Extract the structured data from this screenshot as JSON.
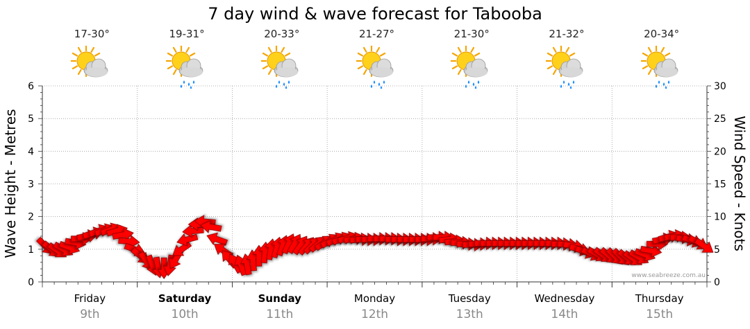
{
  "header": {
    "title": "7 day wind & wave forecast for Tabooba"
  },
  "days": [
    {
      "name": "Friday",
      "date": "9th",
      "bold": false,
      "temp": "17-30°",
      "icon": "sun-cloud-icon"
    },
    {
      "name": "Saturday",
      "date": "10th",
      "bold": true,
      "temp": "19-31°",
      "icon": "sun-cloud-rain-icon"
    },
    {
      "name": "Sunday",
      "date": "11th",
      "bold": true,
      "temp": "20-33°",
      "icon": "sun-cloud-rain-icon"
    },
    {
      "name": "Monday",
      "date": "12th",
      "bold": false,
      "temp": "21-27°",
      "icon": "sun-cloud-rain-icon"
    },
    {
      "name": "Tuesday",
      "date": "13th",
      "bold": false,
      "temp": "21-30°",
      "icon": "sun-cloud-rain-icon"
    },
    {
      "name": "Wednesday",
      "date": "14th",
      "bold": false,
      "temp": "21-32°",
      "icon": "sun-cloud-rain-icon"
    },
    {
      "name": "Thursday",
      "date": "15th",
      "bold": false,
      "temp": "20-34°",
      "icon": "sun-cloud-rain-icon"
    }
  ],
  "watermark": "www.seabreeze.com.au",
  "colors": {
    "arrow": "#ff0000",
    "arrow_stroke": "#8b0000",
    "grid": "#999999",
    "axis": "#333333",
    "date": "#888888"
  },
  "chart_data": {
    "type": "line",
    "title": "7 day wind & wave forecast for Tabooba",
    "ylabel_left": "Wave Height - Metres",
    "ylabel_right": "Wind Speed - Knots",
    "ylim_left": [
      0,
      6
    ],
    "ylim_right": [
      0,
      30
    ],
    "yticks_left": [
      "0",
      "1",
      "2",
      "3",
      "4",
      "5",
      "6"
    ],
    "yticks_right": [
      "0",
      "5",
      "10",
      "15",
      "20",
      "25",
      "30"
    ],
    "grid": true,
    "categories": [
      "Friday 9th",
      "Saturday 10th",
      "Sunday 11th",
      "Monday 12th",
      "Tuesday 13th",
      "Wednesday 14th",
      "Thursday 15th"
    ],
    "series": [
      {
        "values_knots": [
          5.5,
          5.0,
          4.8,
          5.0,
          5.3,
          6.0,
          6.6,
          7.0,
          7.4,
          7.8,
          7.9,
          8.0,
          7.8,
          7.2,
          6.2,
          5.0,
          4.0,
          3.2,
          2.6,
          2.3,
          2.2,
          2.6,
          3.5,
          5.0,
          6.5,
          7.8,
          8.8,
          9.2,
          8.4,
          6.5,
          4.8,
          3.5,
          2.8,
          2.5,
          2.6,
          3.2,
          3.9,
          4.4,
          4.9,
          5.2,
          5.5,
          5.8,
          5.8,
          5.6,
          5.5,
          5.6,
          5.8,
          6.0,
          6.3,
          6.5,
          6.6,
          6.7,
          6.6,
          6.5,
          6.5,
          6.5,
          6.6,
          6.6,
          6.6,
          6.5,
          6.5,
          6.5,
          6.5,
          6.5,
          6.5,
          6.6,
          6.8,
          6.8,
          6.5,
          6.2,
          6.0,
          5.8,
          5.7,
          5.8,
          5.9,
          5.9,
          5.9,
          5.9,
          5.9,
          5.9,
          5.9,
          5.9,
          5.9,
          5.9,
          5.9,
          5.9,
          5.9,
          5.8,
          5.7,
          5.5,
          5.0,
          4.6,
          4.3,
          4.2,
          4.1,
          4.0,
          3.9,
          3.8,
          3.7,
          3.6,
          3.8,
          4.2,
          4.8,
          5.8,
          6.5,
          6.9,
          7.0,
          6.8,
          6.5,
          6.3,
          6.0,
          5.5
        ],
        "directions_deg": [
          135,
          130,
          125,
          120,
          110,
          100,
          90,
          80,
          75,
          70,
          70,
          70,
          75,
          80,
          95,
          110,
          130,
          145,
          160,
          170,
          180,
          190,
          210,
          235,
          255,
          265,
          270,
          275,
          280,
          290,
          305,
          320,
          330,
          340,
          350,
          355,
          0,
          5,
          10,
          15,
          20,
          25,
          30,
          35,
          40,
          45,
          50,
          55,
          60,
          65,
          70,
          75,
          80,
          85,
          90,
          90,
          90,
          90,
          90,
          90,
          90,
          90,
          90,
          90,
          90,
          90,
          90,
          90,
          85,
          85,
          90,
          90,
          90,
          90,
          90,
          90,
          90,
          90,
          90,
          90,
          90,
          90,
          90,
          90,
          90,
          90,
          90,
          90,
          95,
          100,
          105,
          110,
          115,
          120,
          125,
          130,
          135,
          135,
          130,
          125,
          120,
          110,
          100,
          90,
          80,
          75,
          80,
          90,
          100,
          110,
          120,
          125
        ]
      }
    ]
  }
}
